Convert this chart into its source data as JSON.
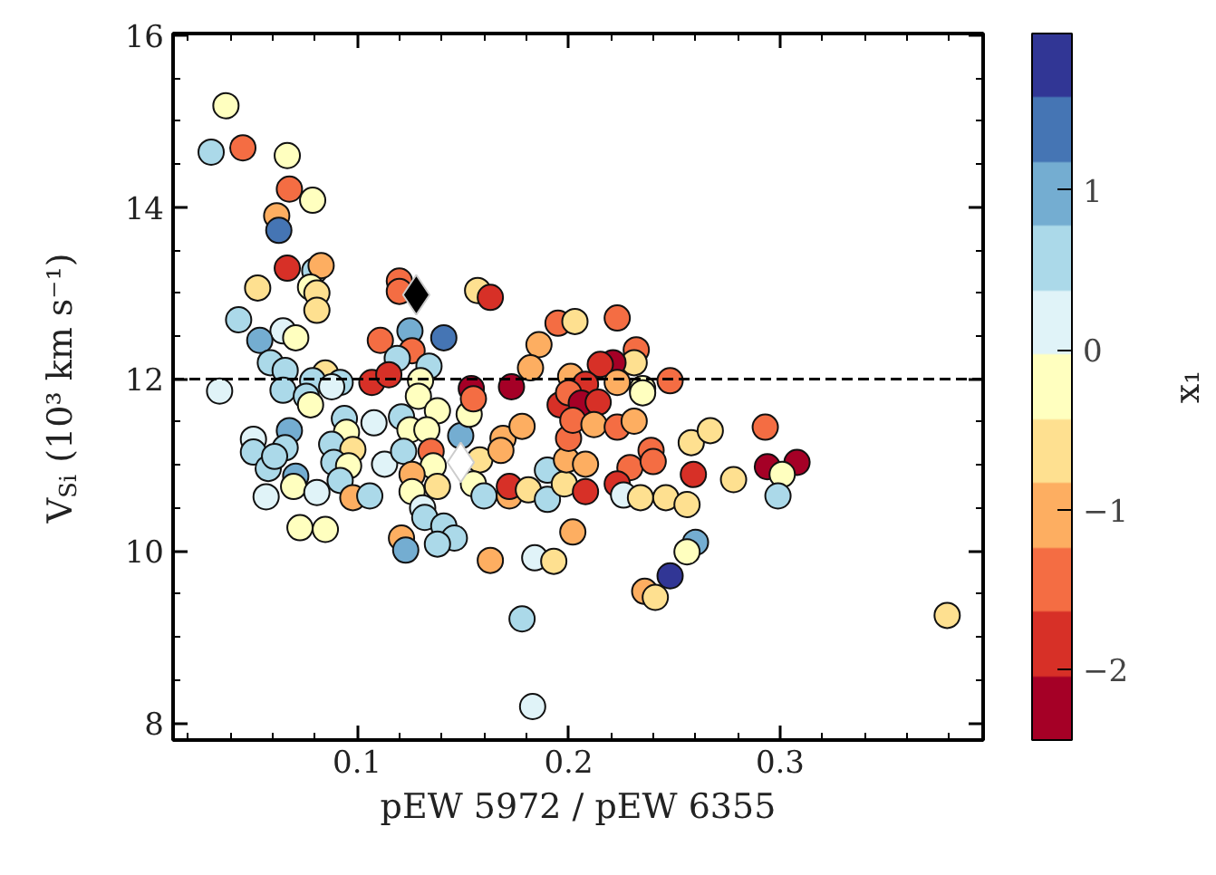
{
  "chart_data": {
    "type": "scatter",
    "xlabel": "pEW 5972 / pEW 6355",
    "ylabel": "V$_{Si}$ (10³ km s⁻¹)",
    "clabel": "x₁",
    "xlim": [
      0.013,
      0.396
    ],
    "ylim": [
      7.8,
      16.02
    ],
    "xticks": [
      0.1,
      0.2,
      0.3
    ],
    "yticks": [
      8,
      10,
      12,
      14,
      16
    ],
    "clim": [
      -2.44,
      1.98
    ],
    "cticks": [
      {
        "value": -2,
        "label": "−2"
      },
      {
        "value": -1,
        "label": "−1"
      },
      0,
      1
    ],
    "grid": false,
    "ref_lines": [
      {
        "axis": "y",
        "value": 12,
        "color": "#000000",
        "line_style": "dashed"
      }
    ],
    "series": [
      {
        "marker": "circle",
        "x": [
          0.038,
          0.031,
          0.046,
          0.067,
          0.068,
          0.079,
          0.062,
          0.063,
          0.067,
          0.08,
          0.083,
          0.053,
          0.078,
          0.081,
          0.081,
          0.12,
          0.12,
          0.157,
          0.163,
          0.044,
          0.065,
          0.071,
          0.054,
          0.059,
          0.066,
          0.125,
          0.141,
          0.111,
          0.126,
          0.119,
          0.134,
          0.195,
          0.203,
          0.186,
          0.182,
          0.201,
          0.085,
          0.079,
          0.092,
          0.107,
          0.115,
          0.13,
          0.154,
          0.173,
          0.223,
          0.232,
          0.231,
          0.221,
          0.215,
          0.223,
          0.235,
          0.248,
          0.208,
          0.035,
          0.065,
          0.076,
          0.088,
          0.078,
          0.068,
          0.051,
          0.051,
          0.058,
          0.066,
          0.061,
          0.057,
          0.071,
          0.07,
          0.081,
          0.073,
          0.085,
          0.094,
          0.095,
          0.088,
          0.098,
          0.089,
          0.096,
          0.092,
          0.108,
          0.098,
          0.106,
          0.113,
          0.121,
          0.125,
          0.129,
          0.138,
          0.133,
          0.122,
          0.135,
          0.136,
          0.126,
          0.126,
          0.131,
          0.132,
          0.138,
          0.149,
          0.153,
          0.155,
          0.158,
          0.155,
          0.16,
          0.141,
          0.146,
          0.121,
          0.123,
          0.138,
          0.169,
          0.168,
          0.178,
          0.172,
          0.172,
          0.181,
          0.19,
          0.19,
          0.198,
          0.199,
          0.2,
          0.196,
          0.2,
          0.202,
          0.163,
          0.184,
          0.193,
          0.178,
          0.183,
          0.206,
          0.214,
          0.235,
          0.202,
          0.212,
          0.223,
          0.231,
          0.208,
          0.229,
          0.239,
          0.24,
          0.223,
          0.208,
          0.226,
          0.234,
          0.246,
          0.256,
          0.258,
          0.267,
          0.259,
          0.278,
          0.293,
          0.294,
          0.308,
          0.301,
          0.299,
          0.26,
          0.256,
          0.248,
          0.236,
          0.241,
          0.379
        ],
        "values": [
          15.18,
          14.64,
          14.69,
          14.6,
          14.21,
          14.08,
          13.9,
          13.73,
          13.29,
          13.26,
          13.32,
          13.06,
          13.07,
          13.0,
          12.8,
          13.14,
          13.02,
          13.03,
          12.95,
          12.69,
          12.56,
          12.48,
          12.45,
          12.19,
          12.1,
          12.56,
          12.48,
          12.45,
          12.33,
          12.24,
          12.15,
          12.65,
          12.67,
          12.4,
          12.13,
          12.03,
          12.07,
          11.98,
          11.96,
          11.96,
          12.05,
          11.98,
          11.89,
          11.91,
          12.71,
          12.34,
          12.19,
          12.19,
          12.17,
          11.96,
          11.89,
          11.98,
          11.94,
          11.86,
          11.87,
          11.8,
          11.91,
          11.7,
          11.4,
          11.3,
          11.15,
          10.96,
          11.2,
          11.1,
          10.63,
          10.87,
          10.75,
          10.68,
          10.27,
          10.25,
          11.54,
          11.38,
          11.24,
          11.18,
          11.03,
          10.99,
          10.82,
          11.49,
          10.62,
          10.64,
          11.01,
          11.56,
          11.41,
          11.8,
          11.63,
          11.41,
          11.16,
          11.16,
          10.99,
          10.89,
          10.69,
          10.5,
          10.39,
          10.75,
          11.34,
          11.59,
          11.77,
          11.06,
          10.78,
          10.64,
          10.29,
          10.15,
          10.15,
          10.01,
          10.08,
          11.31,
          11.17,
          11.45,
          10.64,
          10.75,
          10.71,
          10.94,
          10.6,
          10.78,
          11.06,
          11.31,
          11.7,
          11.84,
          10.22,
          9.89,
          9.92,
          9.88,
          9.21,
          8.19,
          11.72,
          11.73,
          11.84,
          11.52,
          11.47,
          11.44,
          11.51,
          11.01,
          10.97,
          11.17,
          11.04,
          10.78,
          10.69,
          10.65,
          10.62,
          10.62,
          10.54,
          11.26,
          11.4,
          10.89,
          10.83,
          11.44,
          10.98,
          11.03,
          10.89,
          10.64,
          10.1,
          9.99,
          9.71,
          9.53,
          9.46,
          9.25
        ],
        "colors": [
          "#ffffbf",
          "#abd9e9",
          "#f46d43",
          "#ffffbf",
          "#f46d43",
          "#ffffbf",
          "#fdae61",
          "#4575b4",
          "#d73027",
          "#abd9e9",
          "#fdae61",
          "#fee090",
          "#ffffbf",
          "#fee090",
          "#fee090",
          "#f46d43",
          "#f46d43",
          "#fee090",
          "#d73027",
          "#abd9e9",
          "#e0f3f8",
          "#ffffbf",
          "#74add1",
          "#abd9e9",
          "#abd9e9",
          "#74add1",
          "#4575b4",
          "#f46d43",
          "#f46d43",
          "#abd9e9",
          "#abd9e9",
          "#f46d43",
          "#fee090",
          "#fdae61",
          "#fdae61",
          "#fdae61",
          "#fee090",
          "#abd9e9",
          "#abd9e9",
          "#d73027",
          "#d73027",
          "#ffffbf",
          "#a50026",
          "#a50026",
          "#f46d43",
          "#f46d43",
          "#fee090",
          "#a50026",
          "#d73027",
          "#fdae61",
          "#ffffbf",
          "#f46d43",
          "#d73027",
          "#e0f3f8",
          "#abd9e9",
          "#abd9e9",
          "#e0f3f8",
          "#ffffbf",
          "#74add1",
          "#e0f3f8",
          "#abd9e9",
          "#abd9e9",
          "#abd9e9",
          "#abd9e9",
          "#e0f3f8",
          "#74add1",
          "#ffffbf",
          "#e0f3f8",
          "#ffffbf",
          "#ffffbf",
          "#abd9e9",
          "#ffffbf",
          "#abd9e9",
          "#fee090",
          "#abd9e9",
          "#ffffbf",
          "#abd9e9",
          "#e0f3f8",
          "#fdae61",
          "#abd9e9",
          "#e0f3f8",
          "#abd9e9",
          "#ffffbf",
          "#ffffbf",
          "#ffffbf",
          "#ffffbf",
          "#abd9e9",
          "#f46d43",
          "#ffffbf",
          "#fdae61",
          "#ffffbf",
          "#e0f3f8",
          "#abd9e9",
          "#fee090",
          "#74add1",
          "#ffffbf",
          "#f46d43",
          "#fee090",
          "#ffffbf",
          "#abd9e9",
          "#abd9e9",
          "#abd9e9",
          "#fdae61",
          "#74add1",
          "#abd9e9",
          "#fdae61",
          "#fdae61",
          "#fdae61",
          "#fdae61",
          "#d73027",
          "#fee090",
          "#abd9e9",
          "#abd9e9",
          "#fee090",
          "#fdae61",
          "#f46d43",
          "#d73027",
          "#f46d43",
          "#fdae61",
          "#fdae61",
          "#e0f3f8",
          "#fee090",
          "#abd9e9",
          "#e0f3f8",
          "#a50026",
          "#d73027",
          "#ffffbf",
          "#f46d43",
          "#fdae61",
          "#f46d43",
          "#fdae61",
          "#fdae61",
          "#f46d43",
          "#f46d43",
          "#f46d43",
          "#d73027",
          "#d73027",
          "#e0f3f8",
          "#fee090",
          "#fee090",
          "#fee090",
          "#fee090",
          "#fee090",
          "#d73027",
          "#fee090",
          "#f46d43",
          "#a50026",
          "#a50026",
          "#ffffbf",
          "#abd9e9",
          "#74add1",
          "#ffffbf",
          "#313695",
          "#fdae61",
          "#fee090",
          "#fee090"
        ]
      },
      {
        "marker": "diamond",
        "color": "#000000",
        "x": [
          0.128
        ],
        "values": [
          12.98
        ]
      },
      {
        "marker": "diamond",
        "color": "#ffffff",
        "x": [
          0.149
        ],
        "values": [
          11.03
        ]
      }
    ]
  }
}
